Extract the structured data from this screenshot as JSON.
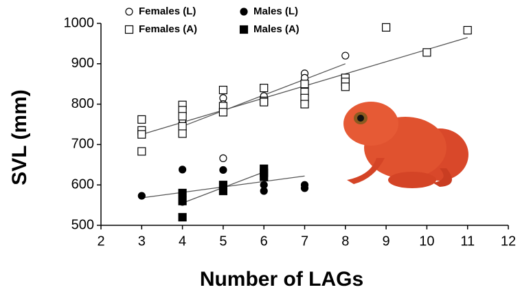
{
  "chart_data": {
    "type": "scatter",
    "x_label": "Number of LAGs",
    "y_label": "SVL (mm)",
    "xlim": [
      2,
      12
    ],
    "xticks": [
      2,
      3,
      4,
      5,
      6,
      7,
      8,
      9,
      10,
      11,
      12
    ],
    "ylim": [
      500,
      1000
    ],
    "yticks": [
      500,
      600,
      700,
      800,
      900,
      1000
    ],
    "series": [
      {
        "name": "Females (L)",
        "color": "#000000",
        "marker": "open-circle",
        "x": [
          4,
          4,
          5,
          5,
          5,
          6,
          7,
          7,
          8
        ],
        "values": [
          755,
          760,
          815,
          800,
          666,
          820,
          876,
          865,
          920
        ]
      },
      {
        "name": "Females (A)",
        "color": "#000000",
        "marker": "open-square",
        "x": [
          3,
          3,
          3,
          3,
          4,
          4,
          4,
          4,
          4,
          5,
          5,
          5,
          6,
          6,
          6,
          7,
          7,
          7,
          7,
          8,
          8,
          8,
          9,
          10,
          11
        ],
        "values": [
          762,
          735,
          725,
          683,
          798,
          785,
          770,
          745,
          727,
          835,
          795,
          780,
          840,
          808,
          805,
          850,
          830,
          815,
          800,
          865,
          855,
          843,
          990,
          928,
          983
        ]
      },
      {
        "name": "Males (L)",
        "color": "#000000",
        "marker": "filled-circle",
        "x": [
          3,
          4,
          4,
          4,
          5,
          5,
          6,
          6,
          6,
          7,
          7
        ],
        "values": [
          573,
          638,
          570,
          558,
          637,
          598,
          620,
          600,
          585,
          600,
          592
        ]
      },
      {
        "name": "Males (A)",
        "color": "#000000",
        "marker": "filled-square",
        "x": [
          4,
          4,
          4,
          5,
          5,
          6,
          6,
          6
        ],
        "values": [
          520,
          580,
          560,
          600,
          585,
          640,
          630,
          620
        ]
      }
    ],
    "trend_lines": [
      {
        "color": "#555555",
        "x": [
          3,
          11
        ],
        "values": [
          725,
          965
        ]
      },
      {
        "color": "#555555",
        "x": [
          4,
          8
        ],
        "values": [
          745,
          900
        ]
      },
      {
        "color": "#555555",
        "x": [
          3,
          7
        ],
        "values": [
          568,
          622
        ]
      },
      {
        "color": "#555555",
        "x": [
          4,
          6
        ],
        "values": [
          555,
          632
        ]
      }
    ]
  }
}
